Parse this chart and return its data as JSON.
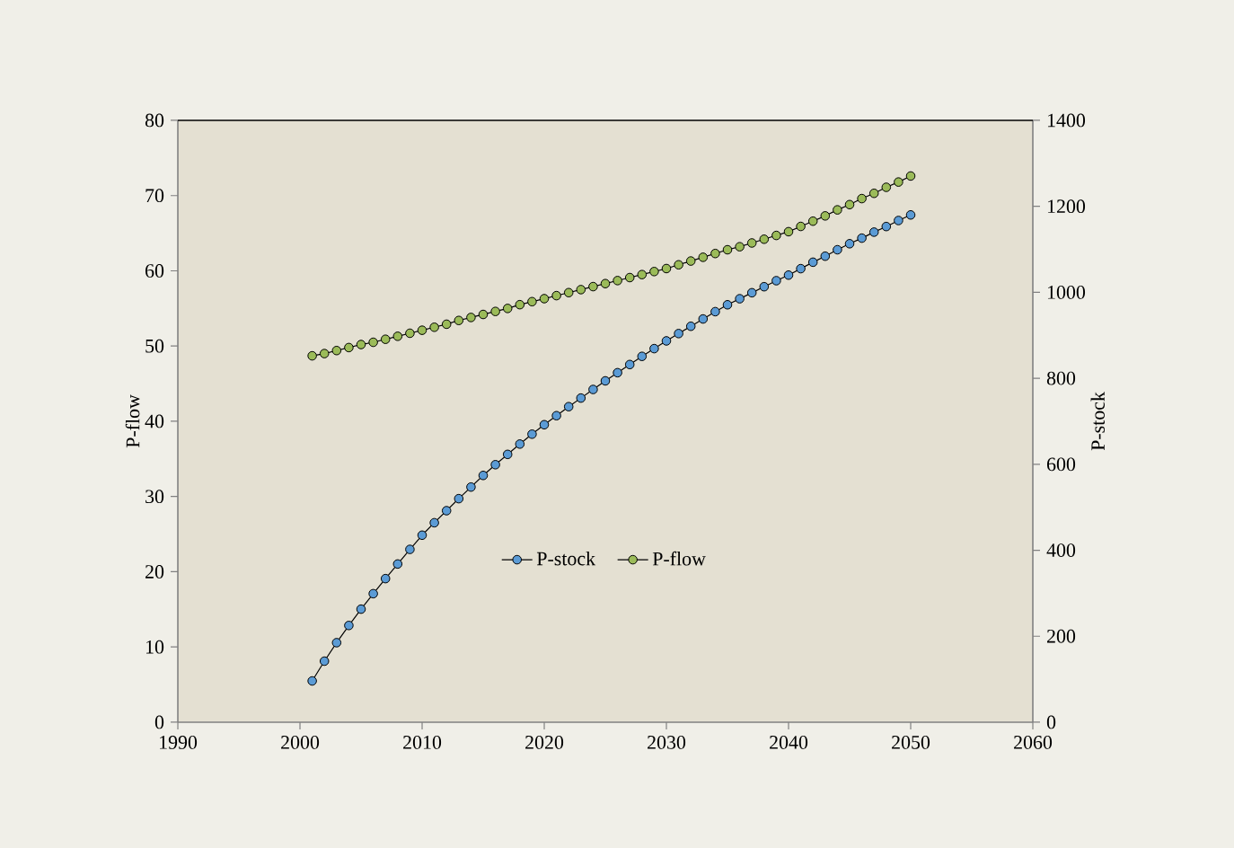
{
  "chart_data": {
    "type": "line",
    "ylabel": "P-flow",
    "y2label": "P-stock",
    "x": [
      2001,
      2002,
      2003,
      2004,
      2005,
      2006,
      2007,
      2008,
      2009,
      2010,
      2011,
      2012,
      2013,
      2014,
      2015,
      2016,
      2017,
      2018,
      2019,
      2020,
      2021,
      2022,
      2023,
      2024,
      2025,
      2026,
      2027,
      2028,
      2029,
      2030,
      2031,
      2032,
      2033,
      2034,
      2035,
      2036,
      2037,
      2038,
      2039,
      2040,
      2041,
      2042,
      2043,
      2044,
      2045,
      2046,
      2047,
      2048,
      2049,
      2050
    ],
    "series": [
      {
        "name": "P-stock",
        "color": "#5b9bd5",
        "axis": "y2",
        "values": [
          96,
          142,
          185,
          225,
          263,
          299,
          334,
          368,
          402,
          435,
          464,
          492,
          520,
          547,
          574,
          599,
          623,
          647,
          670,
          692,
          713,
          734,
          754,
          774,
          794,
          813,
          832,
          851,
          869,
          887,
          904,
          921,
          938,
          955,
          971,
          985,
          999,
          1013,
          1027,
          1040,
          1055,
          1070,
          1084,
          1099,
          1113,
          1126,
          1140,
          1153,
          1167,
          1180
        ]
      },
      {
        "name": "P-flow",
        "color": "#9bbb59",
        "values": [
          48.7,
          49.0,
          49.4,
          49.8,
          50.2,
          50.5,
          50.9,
          51.3,
          51.7,
          52.1,
          52.5,
          52.9,
          53.4,
          53.8,
          54.2,
          54.6,
          55.0,
          55.5,
          55.9,
          56.3,
          56.7,
          57.1,
          57.5,
          57.9,
          58.3,
          58.7,
          59.1,
          59.5,
          59.9,
          60.3,
          60.8,
          61.3,
          61.8,
          62.3,
          62.8,
          63.2,
          63.7,
          64.2,
          64.7,
          65.2,
          65.9,
          66.6,
          67.3,
          68.1,
          68.8,
          69.6,
          70.3,
          71.1,
          71.8,
          72.6
        ]
      }
    ],
    "xlim": [
      1990,
      2060
    ],
    "xticks": [
      1990,
      2000,
      2010,
      2020,
      2030,
      2040,
      2050,
      2060
    ],
    "ylim": [
      0,
      80
    ],
    "yticks": [
      0,
      10,
      20,
      30,
      40,
      50,
      60,
      70,
      80
    ],
    "y2lim": [
      0,
      1400
    ],
    "y2ticks": [
      0,
      200,
      400,
      600,
      800,
      1000,
      1200,
      1400
    ],
    "marker": "circle",
    "line_style": "solid",
    "legend": "bottom",
    "grid": false
  }
}
